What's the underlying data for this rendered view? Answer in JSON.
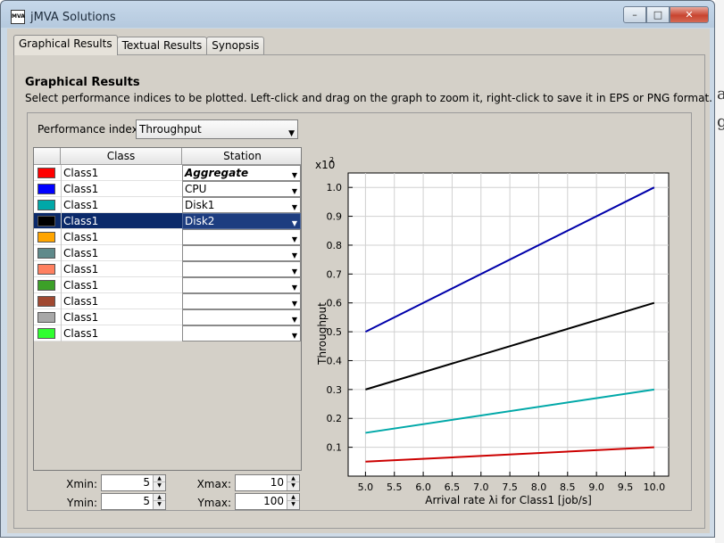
{
  "window": {
    "title": "jMVA Solutions",
    "app_icon_text": "MVA",
    "minimize_glyph": "–",
    "maximize_glyph": "□",
    "close_glyph": "✕"
  },
  "tabs": [
    {
      "label": "Graphical Results",
      "active": true
    },
    {
      "label": "Textual Results",
      "active": false
    },
    {
      "label": "Synopsis",
      "active": false
    }
  ],
  "section": {
    "title": "Graphical Results",
    "description": "Select performance indices to be plotted. Left-click and drag on the graph to zoom it, right-click to save it in EPS or PNG format."
  },
  "performance_index": {
    "label": "Performance index:",
    "value": "Throughput"
  },
  "table": {
    "headers": [
      "",
      "Class",
      "Station"
    ],
    "rows": [
      {
        "color": "#ff0000",
        "class": "Class1",
        "station": "Aggregate",
        "bold": true,
        "selected": false
      },
      {
        "color": "#0000ff",
        "class": "Class1",
        "station": "CPU",
        "bold": false,
        "selected": false
      },
      {
        "color": "#00a8a8",
        "class": "Class1",
        "station": "Disk1",
        "bold": false,
        "selected": false
      },
      {
        "color": "#000000",
        "class": "Class1",
        "station": "Disk2",
        "bold": false,
        "selected": true
      },
      {
        "color": "#ffa500",
        "class": "Class1",
        "station": "",
        "bold": false,
        "selected": false
      },
      {
        "color": "#5f8a8b",
        "class": "Class1",
        "station": "",
        "bold": false,
        "selected": false
      },
      {
        "color": "#ff8060",
        "class": "Class1",
        "station": "",
        "bold": false,
        "selected": false
      },
      {
        "color": "#3ca028",
        "class": "Class1",
        "station": "",
        "bold": false,
        "selected": false
      },
      {
        "color": "#a04830",
        "class": "Class1",
        "station": "",
        "bold": false,
        "selected": false
      },
      {
        "color": "#a8a8a8",
        "class": "Class1",
        "station": "",
        "bold": false,
        "selected": false
      },
      {
        "color": "#30ff30",
        "class": "Class1",
        "station": "",
        "bold": false,
        "selected": false
      }
    ]
  },
  "range": {
    "xmin_label": "Xmin:",
    "xmin": "5",
    "xmax_label": "Xmax:",
    "xmax": "10",
    "ymin_label": "Ymin:",
    "ymin": "5",
    "ymax_label": "Ymax:",
    "ymax": "100"
  },
  "chart_data": {
    "type": "line",
    "title": "",
    "xlabel": "Arrival rate λi for Class1 [job/s]",
    "ylabel": "Throughput",
    "y_multiplier": "x10",
    "y_multiplier_exp": "2",
    "xlim": [
      4.7,
      10.25
    ],
    "ylim": [
      0.0,
      1.05
    ],
    "x_ticks": [
      "5.0",
      "5.5",
      "6.0",
      "6.5",
      "7.0",
      "7.5",
      "8.0",
      "8.5",
      "9.0",
      "9.5",
      "10.0"
    ],
    "y_ticks": [
      "0.1",
      "0.2",
      "0.3",
      "0.4",
      "0.5",
      "0.6",
      "0.7",
      "0.8",
      "0.9",
      "1.0"
    ],
    "grid": true,
    "series": [
      {
        "color": "#0000aa",
        "x": [
          5.0,
          10.0
        ],
        "y": [
          0.5,
          1.0
        ]
      },
      {
        "color": "#000000",
        "x": [
          5.0,
          10.0
        ],
        "y": [
          0.3,
          0.6
        ]
      },
      {
        "color": "#00a8a8",
        "x": [
          5.0,
          10.0
        ],
        "y": [
          0.15,
          0.3
        ]
      },
      {
        "color": "#cc0000",
        "x": [
          5.0,
          10.0
        ],
        "y": [
          0.05,
          0.1
        ]
      }
    ]
  }
}
